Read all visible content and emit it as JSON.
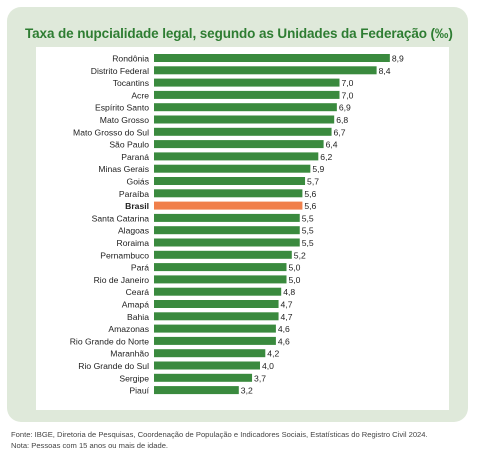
{
  "chart_data": {
    "type": "bar",
    "orientation": "horizontal",
    "title": "Taxa de nupcialidade legal, segundo as Unidades da Federação (‰)",
    "xlabel": "",
    "ylabel": "",
    "xlim": [
      0,
      9.3
    ],
    "grid": false,
    "categories": [
      "Rondônia",
      "Distrito Federal",
      "Tocantins",
      "Acre",
      "Espírito Santo",
      "Mato Grosso",
      "Mato Grosso do Sul",
      "São Paulo",
      "Paraná",
      "Minas Gerais",
      "Goiás",
      "Paraíba",
      "Brasil",
      "Santa Catarina",
      "Alagoas",
      "Roraima",
      "Pernambuco",
      "Pará",
      "Rio de Janeiro",
      "Ceará",
      "Amapá",
      "Bahia",
      "Amazonas",
      "Rio Grande do Norte",
      "Maranhão",
      "Rio Grande do Sul",
      "Sergipe",
      "Piauí"
    ],
    "values": [
      8.9,
      8.4,
      7.0,
      7.0,
      6.9,
      6.8,
      6.7,
      6.4,
      6.2,
      5.9,
      5.7,
      5.6,
      5.6,
      5.5,
      5.5,
      5.5,
      5.2,
      5.0,
      5.0,
      4.8,
      4.7,
      4.7,
      4.6,
      4.6,
      4.2,
      4.0,
      3.7,
      3.2
    ],
    "value_labels": [
      "8,9",
      "8,4",
      "7,0",
      "7,0",
      "6,9",
      "6,8",
      "6,7",
      "6,4",
      "6,2",
      "5,9",
      "5,7",
      "5,6",
      "5,6",
      "5,5",
      "5,5",
      "5,5",
      "5,2",
      "5,0",
      "5,0",
      "4,8",
      "4,7",
      "4,7",
      "4,6",
      "4,6",
      "4,2",
      "4,0",
      "3,7",
      "3,2"
    ],
    "highlight": "Brasil",
    "colors": {
      "bar": "#3a8a3e",
      "highlight": "#f07f4a",
      "title": "#2e7d32",
      "panel": "#dfe9da"
    }
  },
  "footer": {
    "source": "Fonte: IBGE, Diretoria de Pesquisas, Coordenação de População e Indicadores Sociais, Estatísticas do Registro Civil 2024.",
    "note": "Nota: Pessoas com 15 anos ou mais de idade."
  }
}
